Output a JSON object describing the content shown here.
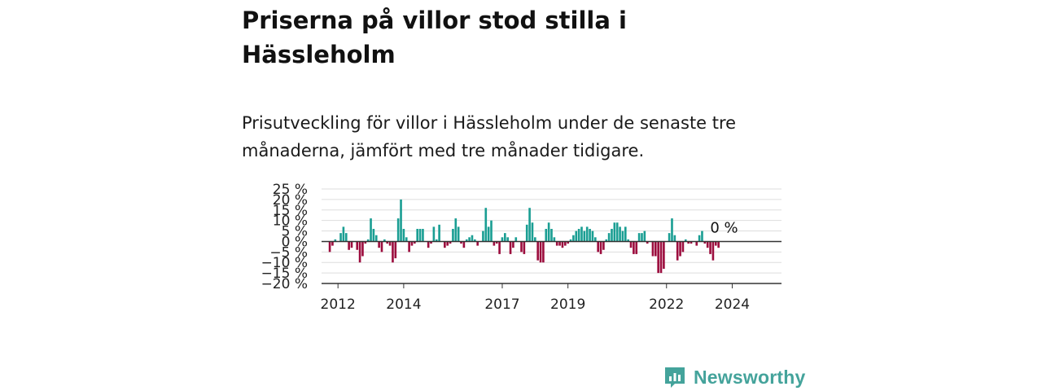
{
  "title": "Priserna på villor stod stilla i Hässleholm",
  "subtitle": "Prisutveckling för villor i Hässleholm under de senaste tre månaderna, jämfört med tre månader tidigare.",
  "brand": {
    "name": "Newsworthy",
    "color": "#44a39b"
  },
  "colors": {
    "positive": "#1a9e93",
    "negative": "#9c0d3e",
    "grid": "#dddddd",
    "axis": "#333333"
  },
  "chart_data": {
    "type": "bar",
    "title": "",
    "xlabel": "",
    "ylabel": "",
    "ylim": [
      -20,
      25
    ],
    "yticks": [
      25,
      20,
      15,
      10,
      5,
      0,
      -5,
      -10,
      -15,
      -20
    ],
    "ytick_labels": [
      "25 %",
      "20 %",
      "15 %",
      "10 %",
      "5 %",
      "0 %",
      "−5 %",
      "−10 %",
      "−15 %",
      "−20 %"
    ],
    "xticks": [
      2012,
      2014,
      2017,
      2019,
      2022,
      2024
    ],
    "xlim": [
      2011.5,
      2025.5
    ],
    "start_year": 2011.75,
    "step_years": 0.0833333,
    "annotation": {
      "label": "0 %",
      "value": 0
    },
    "values": [
      -5,
      -2,
      1,
      0,
      4,
      7,
      4,
      -4,
      -3,
      0,
      -4,
      -10,
      -7,
      -1,
      1,
      11,
      6,
      3,
      -3,
      -5,
      1,
      -1,
      -2,
      -10,
      -8,
      11,
      20,
      6,
      2,
      -5,
      -2,
      -1,
      6,
      6,
      6,
      0,
      -3,
      -1,
      7,
      1,
      8,
      0,
      -3,
      -2,
      -1,
      6,
      11,
      7,
      -1,
      -3,
      1,
      2,
      3,
      1,
      -2,
      0,
      5,
      16,
      7,
      10,
      -2,
      -1,
      -6,
      2,
      4,
      2,
      -6,
      -3,
      2,
      0,
      -5,
      -6,
      8,
      16,
      9,
      2,
      -9,
      -10,
      -10,
      6,
      9,
      6,
      2,
      -2,
      -2,
      -3,
      -2,
      -1,
      1,
      3,
      5,
      6,
      7,
      5,
      7,
      6,
      5,
      2,
      -5,
      -6,
      -4,
      1,
      4,
      6,
      9,
      9,
      7,
      5,
      7,
      1,
      -3,
      -6,
      -6,
      4,
      4,
      5,
      -1,
      0,
      -7,
      -7,
      -15,
      -15,
      -13,
      0,
      4,
      11,
      3,
      -9,
      -7,
      -5,
      1,
      -1,
      -1,
      0,
      -2,
      3,
      5,
      -1,
      -3,
      -6,
      -9,
      -2,
      -3,
      0,
      0
    ]
  }
}
